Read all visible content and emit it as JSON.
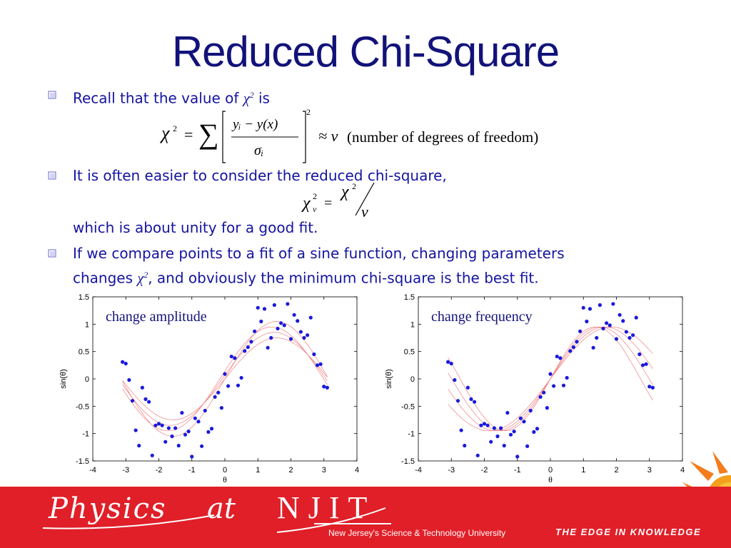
{
  "slide": {
    "title": "Reduced Chi-Square"
  },
  "bullets": [
    {
      "text_before": "Recall that the value of ",
      "symbol": "χ",
      "sup": "2",
      "text_after": " is"
    },
    {
      "text": "It is often easier to consider the reduced chi-square,"
    },
    {
      "text": "which is about unity for a good fit."
    },
    {
      "line1": "If we compare points to a fit of a sine function, changing parameters",
      "line2_before": "changes ",
      "symbol": "χ",
      "sup": "2",
      "line2_after": ", and obviously the minimum chi-square is the best fit."
    }
  ],
  "equations": {
    "chi_lhs": "χ",
    "chi_sup": "2",
    "equals": "=",
    "sum": "∑",
    "numerator": "yᵢ − y(x)",
    "denominator": "σᵢ",
    "outer_sup": "2",
    "approx": "≈ ν",
    "freedom": "(number of degrees of freedom)",
    "reduced_lhs": "χ",
    "reduced_sup": "2",
    "reduced_sub": "ν",
    "reduced_num": "χ",
    "reduced_num_sup": "2",
    "reduced_den": "ν"
  },
  "chart_data": [
    {
      "type": "scatter",
      "annotation": "change amplitude",
      "xlabel": "θ",
      "ylabel": "sin(θ)",
      "xlim": [
        -4,
        4
      ],
      "ylim": [
        -1.5,
        1.5
      ],
      "xticks": [
        "-4",
        "-3",
        "-2",
        "-1",
        "0",
        "1",
        "2",
        "3",
        "4"
      ],
      "yticks": [
        "1.5",
        "1",
        "0.5",
        "0",
        "-0.5",
        "-1",
        "-1.5"
      ],
      "points_color": "#1a1adc",
      "curve_color": "#f08080",
      "series": [
        {
          "x": [
            -3.1,
            -3.0,
            -2.9,
            -2.8,
            -2.7,
            -2.6,
            -2.5,
            -2.4,
            -2.3,
            -2.2,
            -2.1,
            -2.0,
            -1.9,
            -1.8,
            -1.7,
            -1.6,
            -1.5,
            -1.4,
            -1.3,
            -1.2,
            -1.1,
            -1.0,
            -0.9,
            -0.8,
            -0.7,
            -0.6,
            -0.5,
            -0.4,
            -0.3,
            -0.2,
            -0.1,
            0.0,
            0.1,
            0.2,
            0.3,
            0.4,
            0.5,
            0.6,
            0.7,
            0.8,
            0.9,
            1.0,
            1.1,
            1.2,
            1.3,
            1.4,
            1.5,
            1.6,
            1.7,
            1.8,
            1.9,
            2.0,
            2.1,
            2.2,
            2.3,
            2.4,
            2.5,
            2.6,
            2.7,
            2.8,
            2.9,
            3.0,
            3.1
          ],
          "y": [
            0.31,
            0.28,
            -0.02,
            -0.4,
            -0.94,
            -1.22,
            -0.16,
            -0.37,
            -0.42,
            -1.4,
            -0.85,
            -0.82,
            -0.85,
            -1.15,
            -0.9,
            -1.05,
            -0.9,
            -1.22,
            -0.62,
            -1.02,
            -0.96,
            -1.42,
            -0.72,
            -0.78,
            -1.23,
            -0.58,
            -0.97,
            -0.91,
            -0.33,
            -0.25,
            -0.53,
            0.09,
            -0.13,
            0.41,
            0.38,
            -0.12,
            0.02,
            0.51,
            0.58,
            0.68,
            0.87,
            1.3,
            1.05,
            1.28,
            0.57,
            0.75,
            1.35,
            0.92,
            1.02,
            0.98,
            1.37,
            0.73,
            1.17,
            1.06,
            0.86,
            0.75,
            0.8,
            1.12,
            0.45,
            0.25,
            0.27,
            -0.14,
            -0.16
          ]
        }
      ],
      "curves": [
        {
          "amplitude": 0.75,
          "phase": 0.0
        },
        {
          "amplitude": 0.85,
          "phase": 0.08
        },
        {
          "amplitude": 0.95,
          "phase": 0.15
        },
        {
          "amplitude": 1.05,
          "phase": 0.0
        }
      ]
    },
    {
      "type": "scatter",
      "annotation": "change frequency",
      "xlabel": "θ",
      "ylabel": "sin(θ)",
      "xlim": [
        -4,
        4
      ],
      "ylim": [
        -1.5,
        1.5
      ],
      "xticks": [
        "-4",
        "-3",
        "-2",
        "-1",
        "0",
        "1",
        "2",
        "3",
        "4"
      ],
      "yticks": [
        "1.5",
        "1",
        "0.5",
        "0",
        "-0.5",
        "-1",
        "-1.5"
      ],
      "points_color": "#1a1adc",
      "curve_color": "#f08080",
      "series": [
        {
          "x": [
            -3.1,
            -3.0,
            -2.9,
            -2.8,
            -2.7,
            -2.6,
            -2.5,
            -2.4,
            -2.3,
            -2.2,
            -2.1,
            -2.0,
            -1.9,
            -1.8,
            -1.7,
            -1.6,
            -1.5,
            -1.4,
            -1.3,
            -1.2,
            -1.1,
            -1.0,
            -0.9,
            -0.8,
            -0.7,
            -0.6,
            -0.5,
            -0.4,
            -0.3,
            -0.2,
            -0.1,
            0.0,
            0.1,
            0.2,
            0.3,
            0.4,
            0.5,
            0.6,
            0.7,
            0.8,
            0.9,
            1.0,
            1.1,
            1.2,
            1.3,
            1.4,
            1.5,
            1.6,
            1.7,
            1.8,
            1.9,
            2.0,
            2.1,
            2.2,
            2.3,
            2.4,
            2.5,
            2.6,
            2.7,
            2.8,
            2.9,
            3.0,
            3.1
          ],
          "y": [
            0.31,
            0.28,
            -0.02,
            -0.4,
            -0.94,
            -1.22,
            -0.16,
            -0.37,
            -0.42,
            -1.4,
            -0.85,
            -0.82,
            -0.85,
            -1.15,
            -0.9,
            -1.05,
            -0.9,
            -1.22,
            -0.62,
            -1.02,
            -0.96,
            -1.42,
            -0.72,
            -0.78,
            -1.23,
            -0.58,
            -0.97,
            -0.91,
            -0.33,
            -0.25,
            -0.53,
            0.09,
            -0.13,
            0.41,
            0.38,
            -0.12,
            0.02,
            0.51,
            0.58,
            0.68,
            0.87,
            1.3,
            1.05,
            1.28,
            0.57,
            0.75,
            1.35,
            0.92,
            1.02,
            0.98,
            1.37,
            0.73,
            1.17,
            1.06,
            0.86,
            0.75,
            0.8,
            1.12,
            0.45,
            0.25,
            0.27,
            -0.14,
            -0.16
          ]
        }
      ],
      "curves": [
        {
          "frequency": 0.85
        },
        {
          "frequency": 0.95
        },
        {
          "frequency": 1.05
        },
        {
          "frequency": 1.15
        }
      ]
    }
  ],
  "footer": {
    "physics": "Physics",
    "at": "at",
    "njit": "NJIT",
    "university": "New Jersey's Science & Technology University",
    "tagline": "THE EDGE IN KNOWLEDGE",
    "colors": {
      "band": "#e01f28",
      "text": "#ffffff"
    }
  },
  "colors": {
    "title": "#12127a",
    "body_text": "#1414a0",
    "bullet": "#8a8acf"
  }
}
